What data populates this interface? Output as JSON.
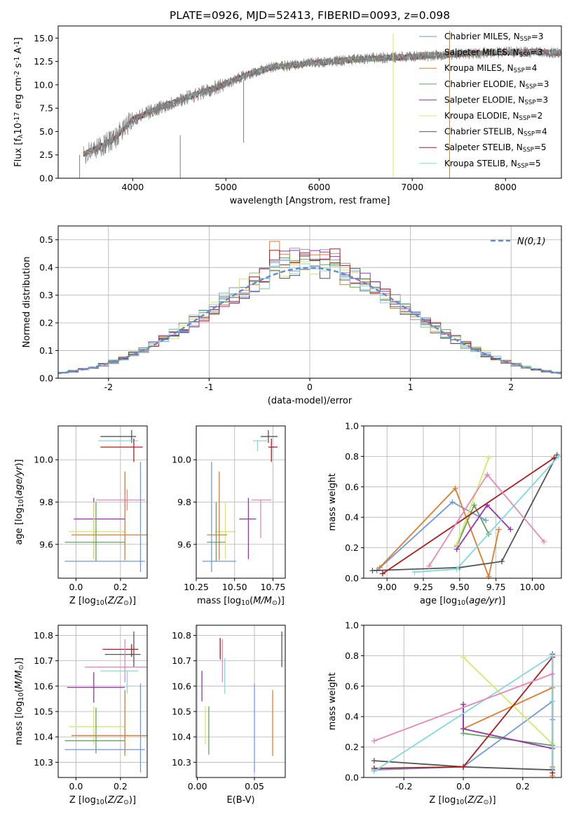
{
  "chart_data": [
    {
      "type": "line",
      "panel": "spectrum",
      "title": "PLATE=0926, MJD=52413, FIBERID=0093, z=0.098",
      "xlabel": "wavelength [Angstrom, rest frame]",
      "ylabel": "Flux [f$_\\lambda$10$^{-17}$ erg cm$^{-2}$ s$^{-1}$ A$^{-1}$]",
      "xlim": [
        3200,
        8600
      ],
      "ylim": [
        0,
        16.3
      ],
      "xticks": [
        4000,
        5000,
        6000,
        7000,
        8000
      ],
      "yticks": [
        0.0,
        2.5,
        5.0,
        7.5,
        10.0,
        12.5,
        15.0
      ],
      "grid": false,
      "legend_position": "right",
      "data_color": "#808080",
      "continuum": {
        "x": [
          3470,
          3600,
          3800,
          4000,
          4300,
          4600,
          4900,
          5200,
          5500,
          6000,
          6500,
          7000,
          7500,
          8000,
          8300,
          8600
        ],
        "y": [
          2.6,
          3.1,
          4.2,
          6.3,
          7.6,
          8.7,
          9.7,
          11.0,
          11.9,
          12.4,
          12.8,
          13.0,
          13.3,
          13.5,
          13.5,
          13.4
        ]
      },
      "spikes": [
        {
          "x": 3430,
          "y": [
            0,
            2.5
          ]
        },
        {
          "x": 4510,
          "y": [
            0,
            4.6
          ]
        },
        {
          "x": 5190,
          "y": [
            3.8,
            10.5
          ]
        },
        {
          "x": 6795,
          "y": [
            0,
            15.5
          ]
        },
        {
          "x": 7400,
          "y": [
            0,
            15.8
          ]
        }
      ],
      "series": [
        {
          "name": "Chabrier MILES, N$_{SSP}$=3",
          "color": "#6b9ae0"
        },
        {
          "name": "Salpeter MILES, N$_{SSP}$=3",
          "color": "#9a9a9a"
        },
        {
          "name": "Kroupa MILES, N$_{SSP}$=4",
          "color": "#e07b2a"
        },
        {
          "name": "Chabrier ELODIE, N$_{SSP}$=3",
          "color": "#62a262"
        },
        {
          "name": "Salpeter ELODIE, N$_{SSP}$=3",
          "color": "#9b30b5"
        },
        {
          "name": "Kroupa ELODIE, N$_{SSP}$=2",
          "color": "#d8e865"
        },
        {
          "name": "Chabrier STELIB, N$_{SSP}$=4",
          "color": "#555555"
        },
        {
          "name": "Salpeter STELIB, N$_{SSP}$=5",
          "color": "#b01c1c"
        },
        {
          "name": "Kroupa STELIB, N$_{SSP}$=5",
          "color": "#80d8e0"
        }
      ]
    },
    {
      "type": "histogram",
      "panel": "residuals",
      "xlabel": "(data-model)/error",
      "ylabel": "Normed distribution",
      "xlim": [
        -2.5,
        2.5
      ],
      "ylim": [
        0,
        0.55
      ],
      "xticks": [
        -2,
        -1,
        0,
        1,
        2
      ],
      "yticks": [
        0.0,
        0.1,
        0.2,
        0.3,
        0.4,
        0.5
      ],
      "grid": true,
      "legend": {
        "label": "$\\mathcal{N}(0,1)$",
        "position": "top-right"
      },
      "gaussian": {
        "mu": 0,
        "sigma": 1,
        "color": "#5b8bd6"
      },
      "bin_width": 0.1,
      "peaks": [
        0.43,
        0.47,
        0.5,
        0.45,
        0.52,
        0.44,
        0.41,
        0.47,
        0.43
      ],
      "colors": [
        "#6b9ae0",
        "#9a9a9a",
        "#e07b2a",
        "#62a262",
        "#9b30b5",
        "#d8e865",
        "#555555",
        "#b01c1c",
        "#80d8e0"
      ]
    },
    {
      "type": "scatter",
      "panel": "Z-age",
      "xlabel": "Z [log$_{10}$($Z/Z_\\odot$)]",
      "ylabel": "age  [log$_{10}$($age/yr$)]",
      "xlim": [
        -0.08,
        0.32
      ],
      "ylim": [
        9.44,
        10.16
      ],
      "xticks": [
        0.0,
        0.2
      ],
      "yticks": [
        9.6,
        9.8,
        10.0
      ],
      "grid": true,
      "errorbars": [
        {
          "color": "#555555",
          "x": 0.25,
          "y": 10.11,
          "xl": -0.14,
          "xr": 0.02,
          "yl": -0.03,
          "yr": 0.03
        },
        {
          "color": "#80d8e0",
          "x": 0.22,
          "y": 10.09,
          "xl": -0.12,
          "xr": 0.06,
          "yl": 0.0,
          "yr": 0.0
        },
        {
          "color": "#b01c1c",
          "x": 0.26,
          "y": 10.06,
          "xl": -0.15,
          "xr": 0.04,
          "yl": -0.07,
          "yr": 0.04
        },
        {
          "color": "#e887b3",
          "x": 0.23,
          "y": 9.81,
          "xl": -0.14,
          "xr": 0.08,
          "yl": -0.05,
          "yr": 0.05
        },
        {
          "color": "#9b30b5",
          "x": 0.08,
          "y": 9.72,
          "xl": -0.09,
          "xr": 0.14,
          "yl": -0.19,
          "yr": 0.1
        },
        {
          "color": "#d8e865",
          "x": 0.08,
          "y": 9.66,
          "xl": -0.11,
          "xr": 0.14,
          "yl": -0.13,
          "yr": 0.14
        },
        {
          "color": "#e07b2a",
          "x": 0.22,
          "y": 9.645,
          "xl": -0.24,
          "xr": 0.1,
          "yl": -0.12,
          "yr": 0.3
        },
        {
          "color": "#62a262",
          "x": 0.09,
          "y": 9.61,
          "xl": -0.14,
          "xr": 0.13,
          "yl": -0.09,
          "yr": 0.19
        },
        {
          "color": "#6b9ae0",
          "x": 0.29,
          "y": 9.52,
          "xl": -0.34,
          "xr": 0.02,
          "yl": -0.05,
          "yr": 0.47
        }
      ]
    },
    {
      "type": "scatter",
      "panel": "mass-age",
      "xlabel": "mass [log$_{10}$($M/M_\\odot$)]",
      "ylabel": "",
      "xlim": [
        10.25,
        10.83
      ],
      "ylim": [
        9.44,
        10.16
      ],
      "xticks": [
        10.25,
        10.5,
        10.75
      ],
      "yticks": [
        9.6,
        9.8,
        10.0
      ],
      "grid": true,
      "errorbars": [
        {
          "color": "#555555",
          "x": 10.72,
          "y": 10.11,
          "xl": -0.05,
          "xr": 0.06,
          "yl": -0.03,
          "yr": 0.03
        },
        {
          "color": "#80d8e0",
          "x": 10.65,
          "y": 10.09,
          "xl": -0.03,
          "xr": 0.06,
          "yl": -0.05,
          "yr": 0.0
        },
        {
          "color": "#b01c1c",
          "x": 10.74,
          "y": 10.06,
          "xl": -0.02,
          "xr": 0.04,
          "yl": -0.07,
          "yr": 0.04
        },
        {
          "color": "#e887b3",
          "x": 10.67,
          "y": 9.81,
          "xl": -0.06,
          "xr": 0.07,
          "yl": -0.18,
          "yr": 0.0
        },
        {
          "color": "#9b30b5",
          "x": 10.59,
          "y": 9.72,
          "xl": -0.06,
          "xr": 0.05,
          "yl": -0.19,
          "yr": 0.1
        },
        {
          "color": "#d8e865",
          "x": 10.44,
          "y": 9.66,
          "xl": -0.07,
          "xr": 0.07,
          "yl": -0.13,
          "yr": 0.14
        },
        {
          "color": "#e07b2a",
          "x": 10.4,
          "y": 9.645,
          "xl": -0.08,
          "xr": 0.05,
          "yl": -0.12,
          "yr": 0.3
        },
        {
          "color": "#62a262",
          "x": 10.38,
          "y": 9.61,
          "xl": -0.06,
          "xr": 0.06,
          "yl": -0.09,
          "yr": 0.19
        },
        {
          "color": "#6b9ae0",
          "x": 10.35,
          "y": 9.52,
          "xl": -0.06,
          "xr": 0.16,
          "yl": -0.05,
          "yr": 0.47
        }
      ]
    },
    {
      "type": "line",
      "panel": "age-weight",
      "xlabel": "age  [log$_{10}$($age/yr$)]",
      "ylabel": "mass weight",
      "xlim": [
        8.84,
        10.2
      ],
      "ylim": [
        0.0,
        1.0
      ],
      "xticks": [
        9.0,
        9.25,
        9.5,
        9.75,
        10.0
      ],
      "yticks": [
        0.0,
        0.2,
        0.4,
        0.6,
        0.8,
        1.0
      ],
      "grid": true,
      "series": [
        {
          "color": "#6b9ae0",
          "x": [
            8.93,
            9.45,
            9.68
          ],
          "y": [
            0.05,
            0.5,
            0.38
          ]
        },
        {
          "color": "#e07b2a",
          "x": [
            8.95,
            9.47,
            9.7,
            9.77
          ],
          "y": [
            0.07,
            0.59,
            0.01,
            0.32
          ]
        },
        {
          "color": "#62a262",
          "x": [
            9.48,
            9.6,
            9.7
          ],
          "y": [
            0.21,
            0.48,
            0.29
          ]
        },
        {
          "color": "#9b30b5",
          "x": [
            9.48,
            9.69,
            9.85
          ],
          "y": [
            0.19,
            0.48,
            0.32
          ]
        },
        {
          "color": "#d8e865",
          "x": [
            9.48,
            9.7
          ],
          "y": [
            0.22,
            0.79
          ]
        },
        {
          "color": "#555555",
          "x": [
            8.9,
            9.5,
            9.79,
            10.17
          ],
          "y": [
            0.05,
            0.07,
            0.11,
            0.81
          ]
        },
        {
          "color": "#b01c1c",
          "x": [
            8.97,
            10.15
          ],
          "y": [
            0.03,
            0.79
          ]
        },
        {
          "color": "#80d8e0",
          "x": [
            9.19,
            9.48,
            10.18
          ],
          "y": [
            0.04,
            0.06,
            0.8
          ]
        },
        {
          "color": "#e887b3",
          "x": [
            9.29,
            9.69,
            10.08
          ],
          "y": [
            0.08,
            0.68,
            0.24
          ]
        }
      ]
    },
    {
      "type": "scatter",
      "panel": "Z-mass",
      "xlabel": "Z [log$_{10}$($Z/Z_\\odot$)]",
      "ylabel": "mass [log$_{10}$($M/M_\\odot$)]",
      "xlim": [
        -0.08,
        0.32
      ],
      "ylim": [
        10.24,
        10.84
      ],
      "xticks": [
        0.0,
        0.2
      ],
      "yticks": [
        10.3,
        10.4,
        10.5,
        10.6,
        10.7,
        10.8
      ],
      "grid": true,
      "errorbars": [
        {
          "color": "#555555",
          "x": 0.26,
          "y": 10.725,
          "xl": -0.13,
          "xr": 0.03,
          "yl": -0.05,
          "yr": 0.09
        },
        {
          "color": "#b01c1c",
          "x": 0.25,
          "y": 10.745,
          "xl": -0.13,
          "xr": 0.03,
          "yl": -0.03,
          "yr": 0.02
        },
        {
          "color": "#e887b3",
          "x": 0.22,
          "y": 10.675,
          "xl": -0.18,
          "xr": 0.1,
          "yl": -0.06,
          "yr": 0.11
        },
        {
          "color": "#80d8e0",
          "x": 0.23,
          "y": 10.66,
          "xl": -0.12,
          "xr": 0.05,
          "yl": -0.09,
          "yr": 0.0
        },
        {
          "color": "#9b30b5",
          "x": 0.08,
          "y": 10.595,
          "xl": -0.12,
          "xr": 0.14,
          "yl": -0.06,
          "yr": 0.06
        },
        {
          "color": "#d8e865",
          "x": 0.08,
          "y": 10.44,
          "xl": -0.11,
          "xr": 0.14,
          "yl": -0.07,
          "yr": 0.08
        },
        {
          "color": "#e07b2a",
          "x": 0.22,
          "y": 10.405,
          "xl": -0.24,
          "xr": 0.1,
          "yl": -0.08,
          "yr": 0.18
        },
        {
          "color": "#62a262",
          "x": 0.09,
          "y": 10.385,
          "xl": -0.14,
          "xr": 0.13,
          "yl": -0.05,
          "yr": 0.13
        },
        {
          "color": "#6b9ae0",
          "x": 0.29,
          "y": 10.35,
          "xl": -0.34,
          "xr": 0.02,
          "yl": -0.09,
          "yr": 0.26
        }
      ]
    },
    {
      "type": "scatter",
      "panel": "EBV-mass",
      "xlabel": "E(B-V)",
      "ylabel": "",
      "xlim": [
        -0.001,
        0.077
      ],
      "ylim": [
        10.24,
        10.84
      ],
      "xticks": [
        0.0,
        0.05
      ],
      "yticks": [
        10.3,
        10.4,
        10.5,
        10.6,
        10.7,
        10.8
      ],
      "grid": true,
      "errorbars": [
        {
          "color": "#9b30b5",
          "x": 0.004,
          "y": 10.6,
          "yl": -0.06,
          "yr": 0.06
        },
        {
          "color": "#d8e865",
          "x": 0.007,
          "y": 10.44,
          "yl": -0.07,
          "yr": 0.08
        },
        {
          "color": "#62a262",
          "x": 0.01,
          "y": 10.43,
          "yl": -0.1,
          "yr": 0.09
        },
        {
          "color": "#b01c1c",
          "x": 0.02,
          "y": 10.745,
          "yl": -0.04,
          "yr": 0.045
        },
        {
          "color": "#e887b3",
          "x": 0.022,
          "y": 10.675,
          "yl": -0.06,
          "yr": 0.11
        },
        {
          "color": "#80d8e0",
          "x": 0.024,
          "y": 10.66,
          "yl": -0.09,
          "yr": 0.05
        },
        {
          "color": "#6b9ae0",
          "x": 0.05,
          "y": 10.35,
          "yl": -0.09,
          "yr": 0.26
        },
        {
          "color": "#e07b2a",
          "x": 0.066,
          "y": 10.405,
          "yl": -0.08,
          "yr": 0.18
        },
        {
          "color": "#555555",
          "x": 0.074,
          "y": 10.725,
          "yl": -0.05,
          "yr": 0.09
        }
      ]
    },
    {
      "type": "line",
      "panel": "Z-weight",
      "xlabel": "Z [log$_{10}$($Z/Z_\\odot$)]",
      "ylabel": "mass weight",
      "xlim": [
        -0.335,
        0.33
      ],
      "ylim": [
        0.0,
        1.0
      ],
      "xticks": [
        -0.2,
        0.0,
        0.2
      ],
      "yticks": [
        0.0,
        0.2,
        0.4,
        0.6,
        0.8,
        1.0
      ],
      "grid": true,
      "series": [
        {
          "color": "#6b9ae0",
          "x": [
            -0.3,
            0.0,
            0.3,
            0.3
          ],
          "y": [
            0.05,
            0.07,
            0.5,
            0.38
          ]
        },
        {
          "color": "#e07b2a",
          "x": [
            0.0,
            0.3,
            0.3,
            0.3
          ],
          "y": [
            0.32,
            0.59,
            0.01,
            0.07
          ]
        },
        {
          "color": "#62a262",
          "x": [
            0.0,
            0.0,
            0.3
          ],
          "y": [
            0.48,
            0.29,
            0.21
          ]
        },
        {
          "color": "#9b30b5",
          "x": [
            0.0,
            0.0,
            0.3
          ],
          "y": [
            0.48,
            0.32,
            0.19
          ]
        },
        {
          "color": "#d8e865",
          "x": [
            0.0,
            0.3
          ],
          "y": [
            0.79,
            0.22
          ]
        },
        {
          "color": "#555555",
          "x": [
            -0.3,
            0.0,
            0.3,
            0.3
          ],
          "y": [
            0.11,
            0.07,
            0.05,
            0.81
          ]
        },
        {
          "color": "#b01c1c",
          "x": [
            -0.3,
            0.0,
            0.3,
            0.3
          ],
          "y": [
            0.06,
            0.07,
            0.79,
            0.03
          ]
        },
        {
          "color": "#80d8e0",
          "x": [
            -0.3,
            0.3,
            0.3,
            0.3
          ],
          "y": [
            0.04,
            0.8,
            0.06,
            0.5
          ]
        },
        {
          "color": "#e887b3",
          "x": [
            -0.3,
            0.3
          ],
          "y": [
            0.24,
            0.68
          ]
        }
      ]
    }
  ],
  "labels": {
    "title": "PLATE=0926, MJD=52413, FIBERID=0093, z=0.098",
    "spec_xlabel": "wavelength [Angstrom, rest frame]",
    "resid_xlabel": "(data-model)/error",
    "resid_ylabel": "Normed distribution",
    "mass_weight": "mass weight",
    "ebv": "E(B-V)"
  }
}
